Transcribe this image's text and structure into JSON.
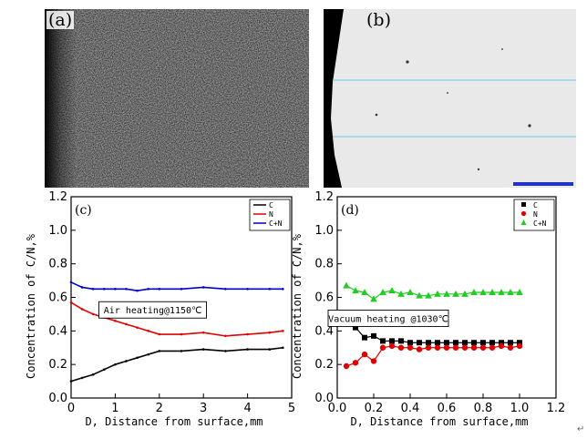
{
  "panels": {
    "a": {
      "label": "(a)"
    },
    "b": {
      "label": "(b)"
    }
  },
  "chart_data": [
    {
      "type": "line",
      "panel_label": "(c)",
      "xlabel": "D, Distance from surface,mm",
      "ylabel": "Concentration of C/N,%",
      "xlim": [
        0,
        5
      ],
      "ylim": [
        0,
        1.2
      ],
      "xticks": [
        "0",
        "1",
        "2",
        "3",
        "4",
        "5"
      ],
      "yticks": [
        "0.0",
        "0.2",
        "0.4",
        "0.6",
        "0.8",
        "1.0",
        "1.2"
      ],
      "annotation": "Air heating@1150℃",
      "legend_position": "top-right",
      "series": [
        {
          "name": "C",
          "color": "#000000",
          "x": [
            0,
            0.25,
            0.5,
            0.75,
            1.0,
            1.25,
            1.5,
            1.75,
            2.0,
            2.5,
            3.0,
            3.5,
            4.0,
            4.5,
            4.8
          ],
          "values": [
            0.1,
            0.12,
            0.14,
            0.17,
            0.2,
            0.22,
            0.24,
            0.26,
            0.28,
            0.28,
            0.29,
            0.28,
            0.29,
            0.29,
            0.3
          ]
        },
        {
          "name": "N",
          "color": "#e00000",
          "x": [
            0,
            0.25,
            0.5,
            0.75,
            1.0,
            1.25,
            1.5,
            1.75,
            2.0,
            2.5,
            3.0,
            3.5,
            4.0,
            4.5,
            4.8
          ],
          "values": [
            0.57,
            0.53,
            0.5,
            0.48,
            0.46,
            0.44,
            0.42,
            0.4,
            0.38,
            0.38,
            0.39,
            0.37,
            0.38,
            0.39,
            0.4
          ]
        },
        {
          "name": "C+N",
          "color": "#0000cc",
          "x": [
            0,
            0.25,
            0.5,
            0.75,
            1.0,
            1.25,
            1.5,
            1.75,
            2.0,
            2.5,
            3.0,
            3.5,
            4.0,
            4.5,
            4.8
          ],
          "values": [
            0.69,
            0.66,
            0.65,
            0.65,
            0.65,
            0.65,
            0.64,
            0.65,
            0.65,
            0.65,
            0.66,
            0.65,
            0.65,
            0.65,
            0.65
          ]
        }
      ]
    },
    {
      "type": "scatter",
      "panel_label": "(d)",
      "xlabel": "D, Distance from surface,mm",
      "ylabel": "Concentration of C/N,%",
      "xlim": [
        0,
        1.2
      ],
      "ylim": [
        0,
        1.2
      ],
      "xticks": [
        "0.0",
        "0.2",
        "0.4",
        "0.6",
        "0.8",
        "1.0",
        "1.2"
      ],
      "yticks": [
        "0.0",
        "0.2",
        "0.4",
        "0.6",
        "0.8",
        "1.0",
        "1.2"
      ],
      "annotation": "Vacuum heating @1030℃",
      "legend_position": "top-right",
      "series": [
        {
          "name": "C",
          "color": "#000000",
          "marker": "square",
          "x": [
            0.05,
            0.1,
            0.15,
            0.2,
            0.25,
            0.3,
            0.35,
            0.4,
            0.45,
            0.5,
            0.55,
            0.6,
            0.65,
            0.7,
            0.75,
            0.8,
            0.85,
            0.9,
            0.95,
            1.0
          ],
          "values": [
            0.47,
            0.42,
            0.36,
            0.37,
            0.34,
            0.34,
            0.34,
            0.33,
            0.33,
            0.33,
            0.33,
            0.33,
            0.33,
            0.33,
            0.33,
            0.33,
            0.33,
            0.33,
            0.33,
            0.33
          ]
        },
        {
          "name": "N",
          "color": "#e00000",
          "marker": "circle",
          "x": [
            0.05,
            0.1,
            0.15,
            0.2,
            0.25,
            0.3,
            0.35,
            0.4,
            0.45,
            0.5,
            0.55,
            0.6,
            0.65,
            0.7,
            0.75,
            0.8,
            0.85,
            0.9,
            0.95,
            1.0
          ],
          "values": [
            0.19,
            0.21,
            0.26,
            0.22,
            0.3,
            0.31,
            0.3,
            0.3,
            0.29,
            0.3,
            0.3,
            0.3,
            0.3,
            0.3,
            0.3,
            0.3,
            0.3,
            0.31,
            0.3,
            0.31
          ]
        },
        {
          "name": "C+N",
          "color": "#22cc22",
          "marker": "triangle",
          "x": [
            0.05,
            0.1,
            0.15,
            0.2,
            0.25,
            0.3,
            0.35,
            0.4,
            0.45,
            0.5,
            0.55,
            0.6,
            0.65,
            0.7,
            0.75,
            0.8,
            0.85,
            0.9,
            0.95,
            1.0
          ],
          "values": [
            0.67,
            0.64,
            0.63,
            0.59,
            0.63,
            0.64,
            0.62,
            0.63,
            0.61,
            0.61,
            0.62,
            0.62,
            0.62,
            0.62,
            0.63,
            0.63,
            0.63,
            0.63,
            0.63,
            0.63
          ]
        }
      ]
    }
  ],
  "footer_mark": "↵"
}
